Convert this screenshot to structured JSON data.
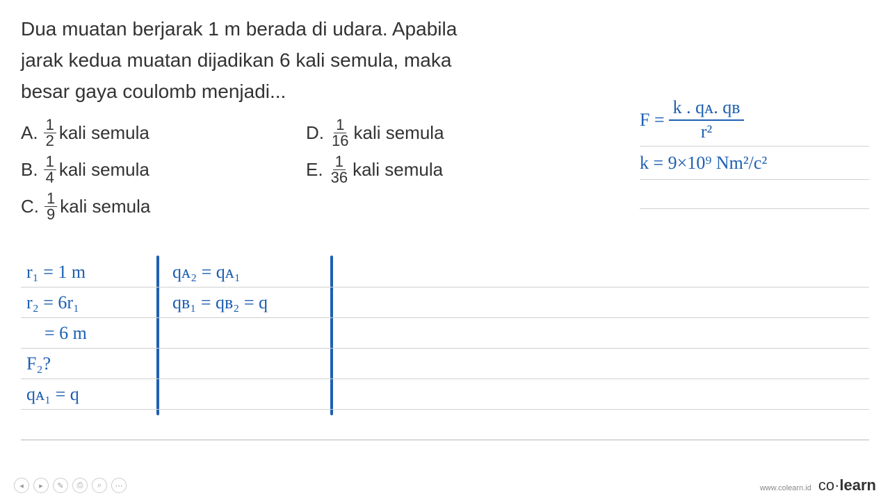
{
  "colors": {
    "text": "#333333",
    "handwriting": "#1e5fb3",
    "ruled_line": "#d0d0d0",
    "background": "#ffffff",
    "icon_border": "#cccccc"
  },
  "typography": {
    "question_fontsize": 28,
    "option_fontsize": 26,
    "handwriting_fontsize": 26,
    "question_font": "Segoe UI",
    "handwriting_font": "Comic Sans MS"
  },
  "question": {
    "line1": "Dua muatan berjarak 1 m berada di udara. Apabila",
    "line2": "jarak kedua muatan dijadikan 6 kali semula, maka",
    "line3": "besar gaya coulomb menjadi..."
  },
  "options": {
    "A": {
      "letter": "A.",
      "num": "1",
      "den": "2",
      "suffix": "kali semula"
    },
    "B": {
      "letter": "B.",
      "num": "1",
      "den": "4",
      "suffix": "kali semula"
    },
    "C": {
      "letter": "C.",
      "num": "1",
      "den": "9",
      "suffix": "kali semula"
    },
    "D": {
      "letter": "D.",
      "num": "1",
      "den": "16",
      "suffix": "kali semula"
    },
    "E": {
      "letter": "E.",
      "num": "1",
      "den": "36",
      "suffix": "kali semula"
    }
  },
  "formula": {
    "f_eq": "F =",
    "f_num": "k . qᴀ. qʙ",
    "f_den": "r²",
    "k_line": "k = 9×10⁹  Nm²/c²"
  },
  "notes": {
    "r1": "r₁ = 1 m",
    "r2": "r₂ = 6r₁",
    "r2b": "    = 6 m",
    "f2": "F₂?",
    "qa1_q": "qᴀ₁ = q",
    "qa2": "qᴀ₂ = qᴀ₁",
    "qb": "qʙ₁ = qʙ₂ = q"
  },
  "footer": {
    "url": "www.colearn.id",
    "brand_co": "co",
    "brand_dot": "·",
    "brand_learn": "learn"
  }
}
